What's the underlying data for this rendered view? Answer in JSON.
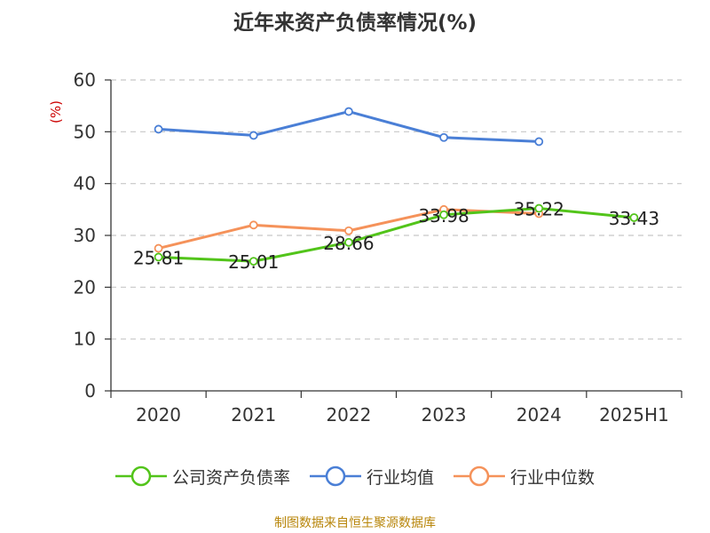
{
  "chart_data": {
    "type": "line",
    "title": "近年来资产负债率情况(%)",
    "ylabel": "(%)",
    "xlabel": "",
    "categories": [
      "2020",
      "2021",
      "2022",
      "2023",
      "2024",
      "2025H1"
    ],
    "ylim": [
      0,
      60
    ],
    "yticks": [
      0,
      10,
      20,
      30,
      40,
      50,
      60
    ],
    "grid": true,
    "legend_position": "bottom",
    "series": [
      {
        "name": "公司资产负债率",
        "color": "#52c41a",
        "values": [
          25.81,
          25.01,
          28.66,
          33.98,
          35.22,
          33.43
        ],
        "labels": [
          "25.81",
          "25.01",
          "28.66",
          "33.98",
          "35.22",
          "33.43"
        ]
      },
      {
        "name": "行业均值",
        "color": "#4a7fd6",
        "values": [
          50.5,
          49.3,
          53.9,
          48.9,
          48.1,
          null
        ]
      },
      {
        "name": "行业中位数",
        "color": "#f5925a",
        "values": [
          27.5,
          32.0,
          30.9,
          35.0,
          34.2,
          null
        ]
      }
    ]
  },
  "source": "制图数据来自恒生聚源数据库"
}
